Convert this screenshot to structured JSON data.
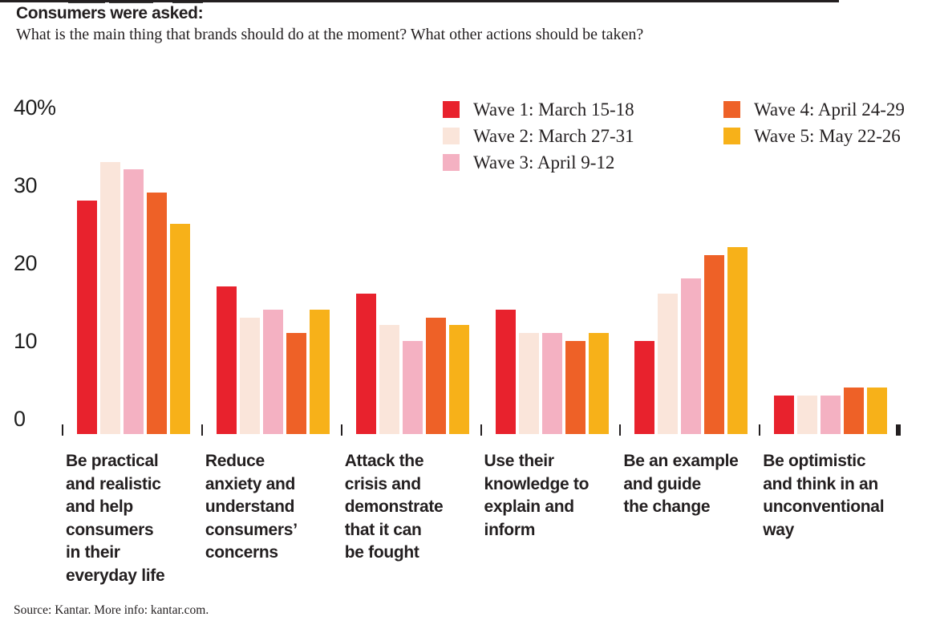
{
  "page": {
    "title": "Consumers were asked:",
    "subtitle": "What is the main thing that brands should do at the moment? What other actions should be taken?",
    "source": "Source: Kantar. More info: kantar.com."
  },
  "chart_data": {
    "type": "bar",
    "title": "Consumers were asked:",
    "subtitle": "What is the main thing that brands should do at the moment? What other actions should be taken?",
    "source": "Source: Kantar. More info: kantar.com.",
    "ylabel": "%",
    "ylim": [
      0,
      40
    ],
    "grid": false,
    "legend_position": "top-center-right, two columns",
    "axis_color": "#231f20",
    "text_color": "#231f20",
    "yticks": [
      {
        "value": 0,
        "label": "0"
      },
      {
        "value": 10,
        "label": "10"
      },
      {
        "value": 20,
        "label": "20"
      },
      {
        "value": 30,
        "label": "30"
      },
      {
        "value": 40,
        "label": "40%"
      }
    ],
    "categories": [
      "Be practical and realistic and help consumers in their everyday life",
      "Reduce anxiety and understand consumers’ concerns",
      "Attack the crisis and demonstrate that it can be fought",
      "Use their knowledge to explain and inform",
      "Be an example and guide the change",
      "Be optimistic and think in an unconventional way"
    ],
    "category_lines": [
      [
        "Be practical",
        "and realistic",
        "and help",
        "consumers",
        "in their",
        "everyday life"
      ],
      [
        "Reduce",
        "anxiety and",
        "understand",
        "consumers’",
        "concerns"
      ],
      [
        "Attack the",
        "crisis and",
        "demonstrate",
        "that it can",
        "be fought"
      ],
      [
        "Use their",
        "knowledge to",
        "explain and",
        "inform"
      ],
      [
        "Be an example",
        "and guide",
        "the change"
      ],
      [
        "Be optimistic",
        "and think in an",
        "unconventional",
        "way"
      ]
    ],
    "series": [
      {
        "name": "Wave 1: March 15-18",
        "color": "#e8222d",
        "values": [
          30,
          19,
          18,
          16,
          12,
          5
        ]
      },
      {
        "name": "Wave 2: March 27-31",
        "color": "#fae5da",
        "values": [
          35,
          15,
          14,
          13,
          18,
          5
        ]
      },
      {
        "name": "Wave 3: April 9-12",
        "color": "#f4b1c2",
        "values": [
          34,
          16,
          12,
          13,
          20,
          5
        ]
      },
      {
        "name": "Wave 4: April 24-29",
        "color": "#ee6127",
        "values": [
          31,
          13,
          15,
          12,
          23,
          6
        ]
      },
      {
        "name": "Wave 5: May 22-26",
        "color": "#f7b119",
        "values": [
          27,
          16,
          14,
          13,
          24,
          6
        ]
      }
    ]
  }
}
